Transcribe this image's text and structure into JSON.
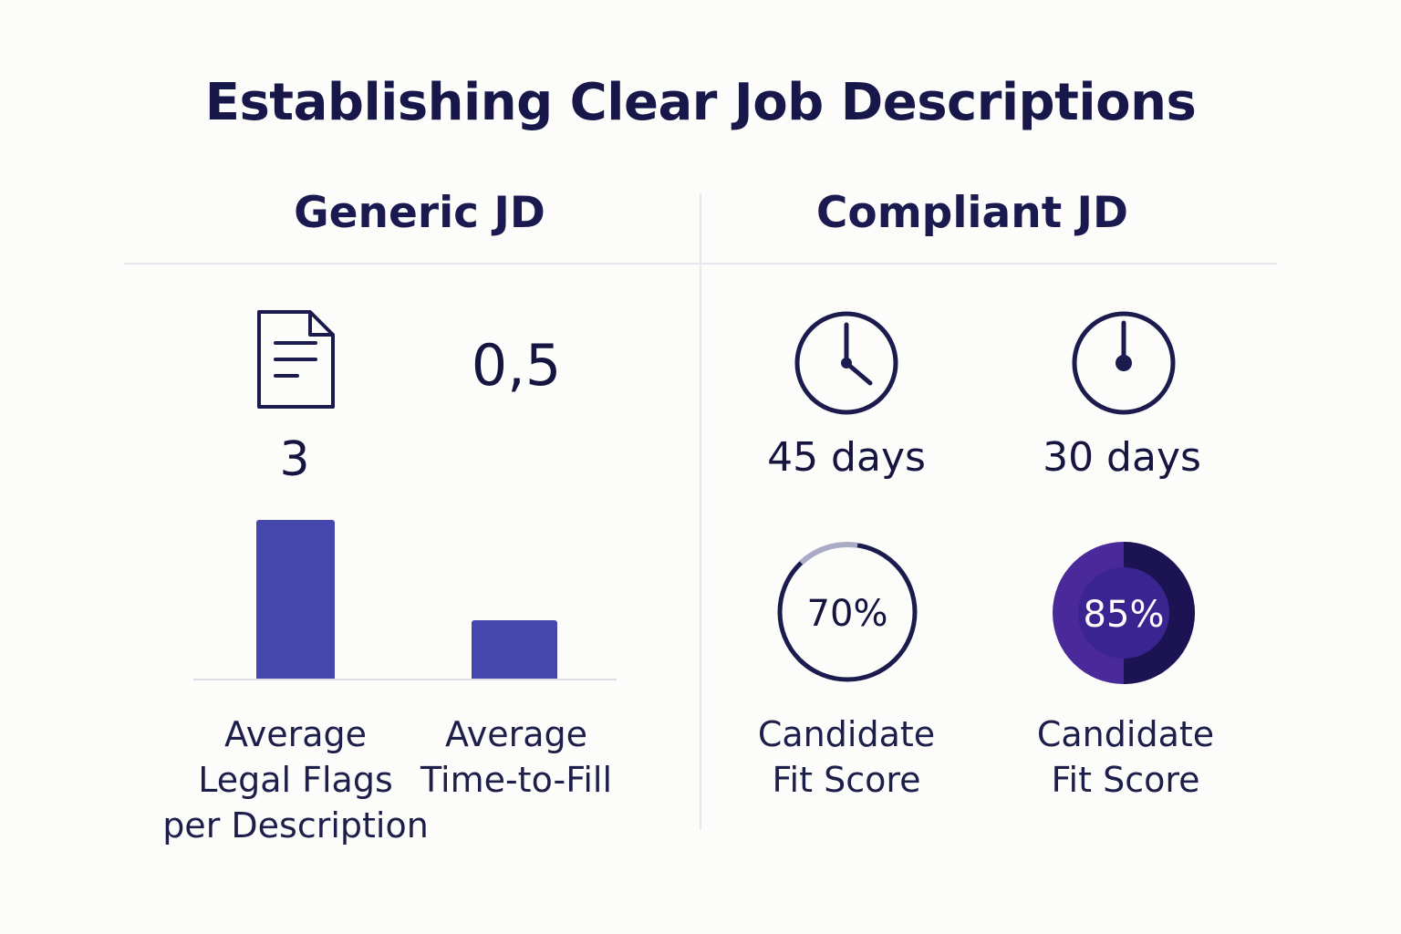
{
  "title": "Establishing Clear Job Descriptions",
  "panels": {
    "generic": {
      "title": "Generic JD"
    },
    "compliant": {
      "title": "Compliant JD"
    }
  },
  "icons": {
    "document": "document-icon",
    "clock_a": "clock-icon",
    "clock_b": "stopwatch-icon"
  },
  "compliant_stats": {
    "days_a": "45 days",
    "days_b": "30 days",
    "score_a": {
      "text": "70%",
      "value": 0.7
    },
    "score_b": {
      "text": "85%",
      "value": 0.85
    },
    "label_a": [
      "Candidate",
      "Fit Score"
    ],
    "label_b": [
      "Candidate",
      "Fit Score"
    ]
  },
  "colors": {
    "bar": "#4547ad",
    "navy": "#1b1b4d",
    "ring_muted": "#a9acc4",
    "donut_purple": "#4a2a9a",
    "donut_dark": "#1c1452",
    "donut_inner": "#3a2590"
  },
  "chart_data": {
    "type": "bar",
    "categories": [
      "Average Legal Flags per Description",
      "Average Time-to-Fill"
    ],
    "values": [
      3,
      0.5
    ],
    "value_labels": [
      "3",
      "0,5"
    ],
    "category_lines": [
      [
        "Average",
        "Legal Flags",
        "per Description"
      ],
      [
        "Average",
        "Time-to-Fill"
      ]
    ],
    "title": "Generic JD",
    "xlabel": "",
    "ylabel": ""
  }
}
